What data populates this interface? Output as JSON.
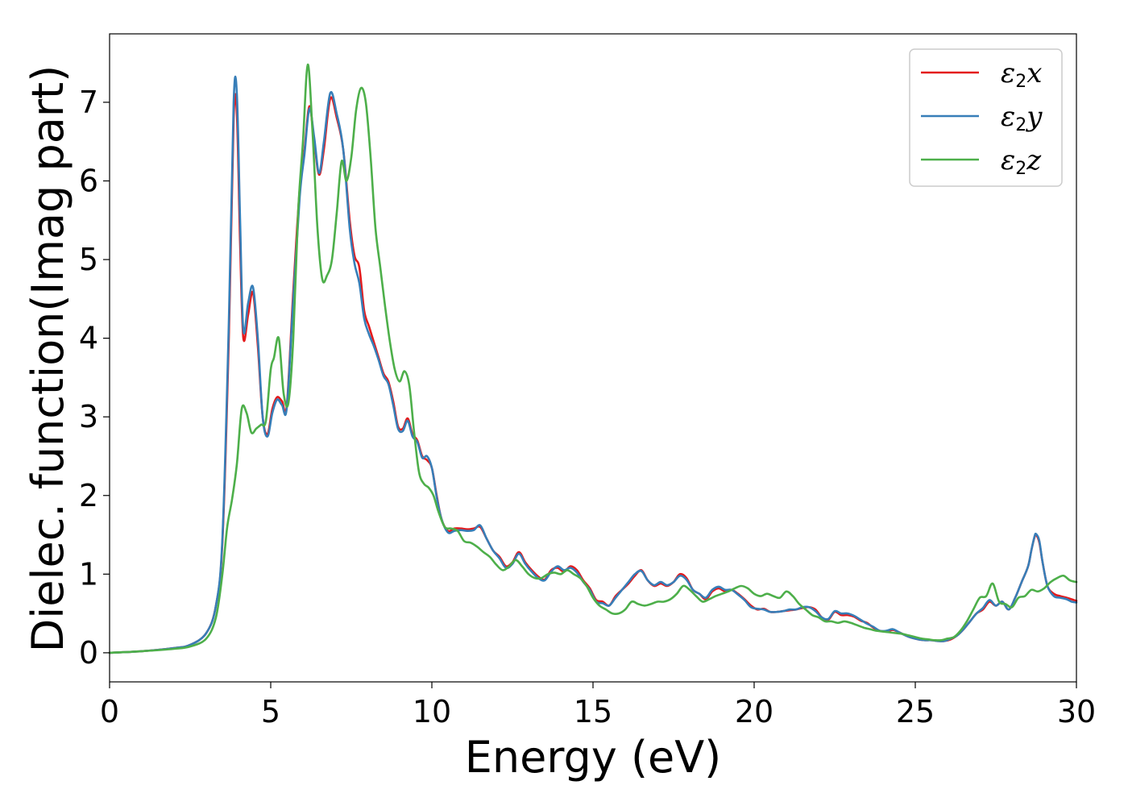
{
  "chart_data": {
    "type": "line",
    "title": "",
    "xlabel": "Energy (eV)",
    "ylabel": "Dielec. function(Imag part)",
    "xlim": [
      0,
      30
    ],
    "ylim": [
      -0.37,
      7.87
    ],
    "xticks": [
      0,
      5,
      10,
      15,
      20,
      25,
      30
    ],
    "yticks": [
      0,
      1,
      2,
      3,
      4,
      5,
      6,
      7
    ],
    "grid": false,
    "legend_position": "top-right",
    "series": [
      {
        "name": "ε2x",
        "label_base": "ε",
        "label_sub": "2",
        "label_tail": "x",
        "color": "#e41a1c",
        "x": [
          0,
          1,
          2,
          2.5,
          3,
          3.3,
          3.5,
          3.7,
          3.85,
          3.95,
          4.05,
          4.15,
          4.3,
          4.45,
          4.6,
          4.75,
          4.9,
          5.05,
          5.2,
          5.35,
          5.5,
          5.7,
          5.9,
          6.05,
          6.2,
          6.35,
          6.5,
          6.65,
          6.85,
          7.05,
          7.25,
          7.45,
          7.6,
          7.75,
          7.9,
          8.05,
          8.2,
          8.35,
          8.5,
          8.65,
          8.8,
          8.95,
          9.1,
          9.25,
          9.4,
          9.55,
          9.7,
          9.85,
          10,
          10.15,
          10.3,
          10.5,
          10.7,
          10.9,
          11.1,
          11.3,
          11.5,
          11.7,
          11.9,
          12.1,
          12.3,
          12.5,
          12.7,
          12.9,
          13.1,
          13.3,
          13.5,
          13.7,
          13.9,
          14.1,
          14.3,
          14.5,
          14.7,
          14.9,
          15.1,
          15.3,
          15.5,
          15.7,
          15.9,
          16.1,
          16.3,
          16.5,
          16.7,
          16.9,
          17.1,
          17.3,
          17.5,
          17.7,
          17.9,
          18.1,
          18.3,
          18.5,
          18.7,
          18.9,
          19.1,
          19.3,
          19.5,
          19.7,
          19.9,
          20.1,
          20.3,
          20.5,
          20.7,
          20.9,
          21.1,
          21.3,
          21.5,
          21.7,
          21.9,
          22.1,
          22.3,
          22.5,
          22.7,
          22.9,
          23.1,
          23.3,
          23.5,
          23.7,
          23.9,
          24.1,
          24.3,
          24.5,
          24.7,
          24.9,
          25.1,
          25.3,
          25.5,
          25.7,
          25.9,
          26.1,
          26.3,
          26.5,
          26.7,
          26.9,
          27.1,
          27.3,
          27.5,
          27.7,
          27.9,
          28.1,
          28.3,
          28.5,
          28.6,
          28.7,
          28.75,
          28.85,
          28.95,
          29.1,
          29.3,
          29.5,
          29.7,
          29.85,
          30
        ],
        "y": [
          0,
          0.02,
          0.06,
          0.1,
          0.25,
          0.6,
          1.4,
          4.0,
          6.8,
          6.85,
          5.2,
          4.0,
          4.3,
          4.58,
          3.9,
          3.0,
          2.78,
          3.1,
          3.25,
          3.2,
          3.15,
          4.6,
          5.9,
          6.4,
          6.95,
          6.5,
          6.08,
          6.4,
          7.05,
          6.8,
          6.4,
          5.5,
          5.05,
          4.9,
          4.35,
          4.15,
          3.95,
          3.75,
          3.55,
          3.45,
          3.2,
          2.88,
          2.85,
          2.98,
          2.78,
          2.7,
          2.5,
          2.45,
          2.35,
          2.0,
          1.7,
          1.55,
          1.58,
          1.58,
          1.57,
          1.58,
          1.6,
          1.45,
          1.3,
          1.22,
          1.1,
          1.15,
          1.28,
          1.15,
          1.05,
          0.97,
          0.93,
          1.05,
          1.08,
          1.03,
          1.1,
          1.05,
          0.92,
          0.82,
          0.67,
          0.65,
          0.6,
          0.72,
          0.8,
          0.88,
          0.98,
          1.05,
          0.92,
          0.85,
          0.88,
          0.85,
          0.9,
          1.0,
          0.95,
          0.8,
          0.75,
          0.68,
          0.78,
          0.82,
          0.78,
          0.8,
          0.75,
          0.68,
          0.6,
          0.55,
          0.56,
          0.52,
          0.52,
          0.53,
          0.54,
          0.55,
          0.57,
          0.58,
          0.55,
          0.45,
          0.42,
          0.52,
          0.48,
          0.48,
          0.46,
          0.41,
          0.38,
          0.32,
          0.28,
          0.27,
          0.29,
          0.26,
          0.22,
          0.19,
          0.17,
          0.16,
          0.16,
          0.15,
          0.15,
          0.17,
          0.22,
          0.3,
          0.4,
          0.5,
          0.55,
          0.65,
          0.6,
          0.65,
          0.55,
          0.7,
          0.9,
          1.1,
          1.3,
          1.47,
          1.5,
          1.4,
          1.15,
          0.85,
          0.75,
          0.72,
          0.7,
          0.68,
          0.66
        ],
        "y_offset_note": ""
      },
      {
        "name": "ε2y",
        "label_base": "ε",
        "label_sub": "2",
        "label_tail": "y",
        "color": "#377eb8",
        "x": [
          0,
          1,
          2,
          2.5,
          3,
          3.3,
          3.5,
          3.7,
          3.85,
          3.95,
          4.05,
          4.15,
          4.3,
          4.45,
          4.6,
          4.75,
          4.9,
          5.05,
          5.2,
          5.35,
          5.5,
          5.7,
          5.9,
          6.05,
          6.2,
          6.35,
          6.5,
          6.65,
          6.85,
          7.05,
          7.25,
          7.45,
          7.6,
          7.75,
          7.9,
          8.05,
          8.2,
          8.35,
          8.5,
          8.65,
          8.8,
          8.95,
          9.1,
          9.25,
          9.4,
          9.55,
          9.7,
          9.85,
          10,
          10.15,
          10.3,
          10.5,
          10.7,
          10.9,
          11.1,
          11.3,
          11.5,
          11.7,
          11.9,
          12.1,
          12.3,
          12.5,
          12.7,
          12.9,
          13.1,
          13.3,
          13.5,
          13.7,
          13.9,
          14.1,
          14.3,
          14.5,
          14.7,
          14.9,
          15.1,
          15.3,
          15.5,
          15.7,
          15.9,
          16.1,
          16.3,
          16.5,
          16.7,
          16.9,
          17.1,
          17.3,
          17.5,
          17.7,
          17.9,
          18.1,
          18.3,
          18.5,
          18.7,
          18.9,
          19.1,
          19.3,
          19.5,
          19.7,
          19.9,
          20.1,
          20.3,
          20.5,
          20.7,
          20.9,
          21.1,
          21.3,
          21.5,
          21.7,
          21.9,
          22.1,
          22.3,
          22.5,
          22.7,
          22.9,
          23.1,
          23.3,
          23.5,
          23.7,
          23.9,
          24.1,
          24.3,
          24.5,
          24.7,
          24.9,
          25.1,
          25.3,
          25.5,
          25.7,
          25.9,
          26.1,
          26.3,
          26.5,
          26.7,
          26.9,
          27.1,
          27.3,
          27.5,
          27.7,
          27.9,
          28.1,
          28.3,
          28.5,
          28.6,
          28.7,
          28.75,
          28.85,
          28.95,
          29.1,
          29.3,
          29.5,
          29.7,
          29.85,
          30
        ],
        "y": [
          0,
          0.02,
          0.06,
          0.1,
          0.25,
          0.6,
          1.45,
          4.2,
          7.0,
          7.1,
          5.5,
          4.1,
          4.45,
          4.65,
          4.0,
          3.0,
          2.75,
          3.05,
          3.22,
          3.15,
          3.12,
          4.5,
          5.8,
          6.35,
          6.92,
          6.55,
          6.1,
          6.5,
          7.12,
          6.85,
          6.4,
          5.4,
          4.95,
          4.7,
          4.25,
          4.05,
          3.9,
          3.72,
          3.52,
          3.42,
          3.15,
          2.85,
          2.82,
          2.95,
          2.75,
          2.68,
          2.48,
          2.5,
          2.35,
          1.98,
          1.7,
          1.53,
          1.55,
          1.56,
          1.55,
          1.56,
          1.62,
          1.45,
          1.3,
          1.2,
          1.08,
          1.13,
          1.26,
          1.13,
          1.03,
          0.95,
          0.92,
          1.03,
          1.1,
          1.05,
          1.08,
          1.02,
          0.9,
          0.8,
          0.65,
          0.63,
          0.6,
          0.7,
          0.8,
          0.9,
          1.0,
          1.04,
          0.92,
          0.86,
          0.9,
          0.86,
          0.9,
          0.98,
          0.93,
          0.8,
          0.75,
          0.7,
          0.8,
          0.84,
          0.8,
          0.8,
          0.74,
          0.67,
          0.58,
          0.56,
          0.55,
          0.52,
          0.52,
          0.53,
          0.55,
          0.55,
          0.58,
          0.58,
          0.53,
          0.45,
          0.43,
          0.53,
          0.5,
          0.5,
          0.47,
          0.42,
          0.37,
          0.33,
          0.28,
          0.28,
          0.3,
          0.26,
          0.22,
          0.19,
          0.17,
          0.16,
          0.16,
          0.15,
          0.15,
          0.18,
          0.22,
          0.3,
          0.4,
          0.5,
          0.57,
          0.67,
          0.6,
          0.65,
          0.55,
          0.7,
          0.9,
          1.1,
          1.3,
          1.48,
          1.51,
          1.42,
          1.15,
          0.85,
          0.72,
          0.7,
          0.68,
          0.65,
          0.64
        ]
      },
      {
        "name": "ε2z",
        "label_base": "ε",
        "label_sub": "2",
        "label_tail": "z",
        "color": "#4daf4a",
        "x": [
          0,
          1,
          2,
          2.5,
          3,
          3.3,
          3.5,
          3.65,
          3.8,
          3.95,
          4.1,
          4.25,
          4.4,
          4.55,
          4.7,
          4.85,
          5.0,
          5.1,
          5.25,
          5.4,
          5.55,
          5.7,
          5.85,
          6.0,
          6.15,
          6.3,
          6.45,
          6.6,
          6.75,
          6.9,
          7.05,
          7.2,
          7.35,
          7.5,
          7.65,
          7.8,
          7.95,
          8.1,
          8.25,
          8.4,
          8.55,
          8.7,
          8.85,
          9.0,
          9.15,
          9.3,
          9.45,
          9.6,
          9.75,
          9.9,
          10.05,
          10.2,
          10.4,
          10.6,
          10.8,
          11.0,
          11.2,
          11.4,
          11.6,
          11.8,
          12.0,
          12.2,
          12.4,
          12.6,
          12.8,
          13.0,
          13.2,
          13.4,
          13.6,
          13.8,
          14.0,
          14.2,
          14.4,
          14.6,
          14.8,
          15.0,
          15.2,
          15.4,
          15.6,
          15.8,
          16.0,
          16.2,
          16.4,
          16.6,
          16.8,
          17.0,
          17.2,
          17.4,
          17.6,
          17.8,
          18.0,
          18.2,
          18.4,
          18.6,
          18.8,
          19.0,
          19.2,
          19.4,
          19.6,
          19.8,
          20.0,
          20.2,
          20.4,
          20.6,
          20.8,
          21.0,
          21.2,
          21.4,
          21.6,
          21.8,
          22.0,
          22.2,
          22.4,
          22.6,
          22.8,
          23.0,
          23.2,
          23.4,
          23.6,
          23.8,
          24.0,
          24.2,
          24.4,
          24.6,
          24.8,
          25.0,
          25.2,
          25.4,
          25.6,
          25.8,
          26.0,
          26.2,
          26.4,
          26.6,
          26.8,
          27.0,
          27.2,
          27.4,
          27.6,
          27.8,
          28.0,
          28.2,
          28.4,
          28.6,
          28.8,
          29.0,
          29.2,
          29.4,
          29.6,
          29.8,
          30
        ],
        "y": [
          0,
          0.02,
          0.05,
          0.08,
          0.18,
          0.45,
          1.0,
          1.6,
          1.95,
          2.4,
          3.1,
          3.05,
          2.8,
          2.85,
          2.9,
          2.95,
          3.6,
          3.75,
          4.0,
          3.3,
          3.18,
          4.0,
          5.6,
          6.5,
          7.48,
          6.6,
          5.4,
          4.75,
          4.8,
          5.0,
          5.6,
          6.25,
          6.0,
          6.3,
          6.9,
          7.18,
          7.0,
          6.3,
          5.4,
          4.9,
          4.4,
          3.95,
          3.6,
          3.45,
          3.58,
          3.4,
          2.8,
          2.3,
          2.15,
          2.1,
          2.0,
          1.8,
          1.6,
          1.58,
          1.55,
          1.42,
          1.4,
          1.35,
          1.28,
          1.22,
          1.12,
          1.05,
          1.1,
          1.18,
          1.1,
          1.0,
          0.95,
          0.95,
          1.0,
          1.02,
          1.0,
          1.05,
          1.0,
          0.95,
          0.85,
          0.7,
          0.6,
          0.55,
          0.5,
          0.5,
          0.55,
          0.65,
          0.62,
          0.6,
          0.62,
          0.65,
          0.65,
          0.68,
          0.75,
          0.85,
          0.8,
          0.72,
          0.65,
          0.68,
          0.72,
          0.75,
          0.78,
          0.82,
          0.85,
          0.82,
          0.75,
          0.72,
          0.75,
          0.72,
          0.7,
          0.78,
          0.72,
          0.62,
          0.55,
          0.48,
          0.45,
          0.4,
          0.4,
          0.38,
          0.4,
          0.38,
          0.35,
          0.32,
          0.3,
          0.28,
          0.27,
          0.26,
          0.25,
          0.24,
          0.22,
          0.2,
          0.18,
          0.17,
          0.16,
          0.16,
          0.18,
          0.2,
          0.28,
          0.4,
          0.55,
          0.7,
          0.72,
          0.88,
          0.65,
          0.62,
          0.58,
          0.7,
          0.72,
          0.8,
          0.78,
          0.82,
          0.9,
          0.95,
          0.98,
          0.92,
          0.9
        ]
      }
    ]
  }
}
